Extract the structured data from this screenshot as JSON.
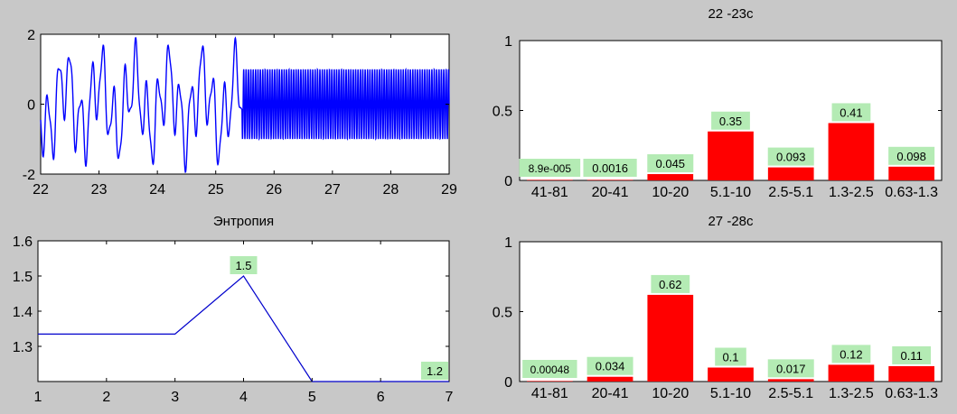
{
  "colors": {
    "background": "#c8c8c8",
    "axes": "#ffffff",
    "signal": "#0000ff",
    "bar": "#ff0000",
    "label_box": "#b4ebb4",
    "line": "#0000cc"
  },
  "chart_data": [
    {
      "type": "line",
      "title": "",
      "x_range": [
        22,
        29
      ],
      "y_range": [
        -2,
        2
      ],
      "x_ticks": [
        "22",
        "23",
        "24",
        "25",
        "26",
        "27",
        "28",
        "29"
      ],
      "y_ticks": [
        "-2",
        "0",
        "2"
      ],
      "series": [
        {
          "segment": "irregular",
          "x_from": 22,
          "x_to": 25.45,
          "y_min": -2,
          "y_max": 1.9
        },
        {
          "segment": "periodic",
          "x_from": 25.45,
          "x_to": 29,
          "y_min": -1,
          "y_max": 1
        }
      ]
    },
    {
      "type": "bar",
      "title": "22 -23c",
      "categories": [
        "41-81",
        "20-41",
        "10-20",
        "5.1-10",
        "2.5-5.1",
        "1.3-2.5",
        "0.63-1.3"
      ],
      "values": [
        8.9e-05,
        0.0016,
        0.045,
        0.35,
        0.093,
        0.41,
        0.098
      ],
      "data_labels": [
        "8.9e-005",
        "0.0016",
        "0.045",
        "0.35",
        "0.093",
        "0.41",
        "0.098"
      ],
      "ylim": [
        0,
        1
      ],
      "y_ticks": [
        "0",
        "0.5",
        "1"
      ]
    },
    {
      "type": "line",
      "title": "Энтропия",
      "x": [
        1,
        2,
        3,
        4,
        5,
        6,
        7
      ],
      "y": [
        1.335,
        1.335,
        1.335,
        1.5,
        1.2,
        1.2,
        1.2
      ],
      "data_labels": [
        {
          "x": 4,
          "text": "1.5"
        },
        {
          "x": 7,
          "text": "1.2"
        }
      ],
      "xlim": [
        1,
        7
      ],
      "ylim": [
        1.2,
        1.6
      ],
      "x_ticks": [
        "1",
        "2",
        "3",
        "4",
        "5",
        "6",
        "7"
      ],
      "y_ticks": [
        "1.3",
        "1.4",
        "1.5",
        "1.6"
      ]
    },
    {
      "type": "bar",
      "title": "27 -28c",
      "categories": [
        "41-81",
        "20-41",
        "10-20",
        "5.1-10",
        "2.5-5.1",
        "1.3-2.5",
        "0.63-1.3"
      ],
      "values": [
        0.00048,
        0.034,
        0.62,
        0.1,
        0.017,
        0.12,
        0.11
      ],
      "data_labels": [
        "0.00048",
        "0.034",
        "0.62",
        "0.1",
        "0.017",
        "0.12",
        "0.11"
      ],
      "ylim": [
        0,
        1
      ],
      "y_ticks": [
        "0",
        "0.5",
        "1"
      ]
    }
  ]
}
